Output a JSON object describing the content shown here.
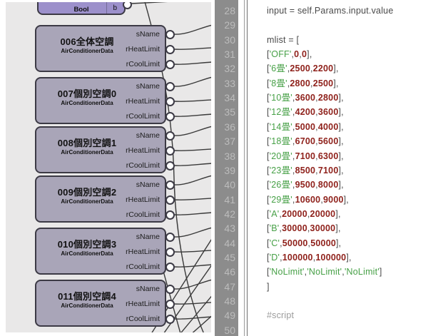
{
  "colors": {
    "canvas_bg": "#e9e8e8",
    "node_fill": "#a9a5b8",
    "node_border": "#3c3a45",
    "bool_node_fill": "#9c90cb",
    "wire": "#3a3a3a",
    "gutter_bg": "#8c8c8c",
    "gutter_text": "#bcbcbc",
    "code_text": "#4a4a4a",
    "string_green": "#46a046",
    "number_red": "#8f221c",
    "comment_gray": "#9b9b9b"
  },
  "canvas": {
    "bool_node": {
      "label": "Bool",
      "port_label": "b"
    },
    "nodes": [
      {
        "title": "006全体空調",
        "subtitle": "AirConditionerData",
        "ports": [
          "sName",
          "rHeatLimit",
          "rCoolLimit"
        ]
      },
      {
        "title": "007個別空調0",
        "subtitle": "AirConditionerData",
        "ports": [
          "sName",
          "rHeatLimit",
          "rCoolLimit"
        ]
      },
      {
        "title": "008個別空調1",
        "subtitle": "AirConditionerData",
        "ports": [
          "sName",
          "rHeatLimit",
          "rCoolLimit"
        ]
      },
      {
        "title": "009個別空調2",
        "subtitle": "AirConditionerData",
        "ports": [
          "sName",
          "rHeatLimit",
          "rCoolLimit"
        ]
      },
      {
        "title": "010個別空調3",
        "subtitle": "AirConditionerData",
        "ports": [
          "sName",
          "rHeatLimit",
          "rCoolLimit"
        ]
      },
      {
        "title": "011個別空調4",
        "subtitle": "AirConditionerData",
        "ports": [
          "sName",
          "rHeatLimit",
          "rCoolLimit"
        ]
      }
    ]
  },
  "editor": {
    "first_line_number": 28,
    "last_line_number": 50,
    "lines": [
      {
        "n": 28,
        "tokens": [
          {
            "t": "c",
            "v": "input = self.Params.input.value"
          }
        ]
      },
      {
        "n": 29,
        "tokens": []
      },
      {
        "n": 30,
        "tokens": [
          {
            "t": "c",
            "v": "mlist = ["
          }
        ]
      },
      {
        "n": 31,
        "tokens": [
          {
            "t": "c",
            "v": "["
          },
          {
            "t": "s",
            "v": "'OFF'"
          },
          {
            "t": "c",
            "v": ","
          },
          {
            "t": "n",
            "v": "0"
          },
          {
            "t": "c",
            "v": ","
          },
          {
            "t": "n",
            "v": "0"
          },
          {
            "t": "c",
            "v": "],"
          }
        ]
      },
      {
        "n": 32,
        "tokens": [
          {
            "t": "c",
            "v": "["
          },
          {
            "t": "s",
            "v": "'6畳'"
          },
          {
            "t": "c",
            "v": ","
          },
          {
            "t": "n",
            "v": "2500"
          },
          {
            "t": "c",
            "v": ","
          },
          {
            "t": "n",
            "v": "2200"
          },
          {
            "t": "c",
            "v": "],"
          }
        ]
      },
      {
        "n": 33,
        "tokens": [
          {
            "t": "c",
            "v": "["
          },
          {
            "t": "s",
            "v": "'8畳'"
          },
          {
            "t": "c",
            "v": ","
          },
          {
            "t": "n",
            "v": "2800"
          },
          {
            "t": "c",
            "v": ","
          },
          {
            "t": "n",
            "v": "2500"
          },
          {
            "t": "c",
            "v": "],"
          }
        ]
      },
      {
        "n": 34,
        "tokens": [
          {
            "t": "c",
            "v": "["
          },
          {
            "t": "s",
            "v": "'10畳'"
          },
          {
            "t": "c",
            "v": ","
          },
          {
            "t": "n",
            "v": "3600"
          },
          {
            "t": "c",
            "v": ","
          },
          {
            "t": "n",
            "v": "2800"
          },
          {
            "t": "c",
            "v": "],"
          }
        ]
      },
      {
        "n": 35,
        "tokens": [
          {
            "t": "c",
            "v": "["
          },
          {
            "t": "s",
            "v": "'12畳'"
          },
          {
            "t": "c",
            "v": ","
          },
          {
            "t": "n",
            "v": "4200"
          },
          {
            "t": "c",
            "v": ","
          },
          {
            "t": "n",
            "v": "3600"
          },
          {
            "t": "c",
            "v": "],"
          }
        ]
      },
      {
        "n": 36,
        "tokens": [
          {
            "t": "c",
            "v": "["
          },
          {
            "t": "s",
            "v": "'14畳'"
          },
          {
            "t": "c",
            "v": ","
          },
          {
            "t": "n",
            "v": "5000"
          },
          {
            "t": "c",
            "v": ","
          },
          {
            "t": "n",
            "v": "4000"
          },
          {
            "t": "c",
            "v": "],"
          }
        ]
      },
      {
        "n": 37,
        "tokens": [
          {
            "t": "c",
            "v": "["
          },
          {
            "t": "s",
            "v": "'18畳'"
          },
          {
            "t": "c",
            "v": ","
          },
          {
            "t": "n",
            "v": "6700"
          },
          {
            "t": "c",
            "v": ","
          },
          {
            "t": "n",
            "v": "5600"
          },
          {
            "t": "c",
            "v": "],"
          }
        ]
      },
      {
        "n": 38,
        "tokens": [
          {
            "t": "c",
            "v": "["
          },
          {
            "t": "s",
            "v": "'20畳'"
          },
          {
            "t": "c",
            "v": ","
          },
          {
            "t": "n",
            "v": "7100"
          },
          {
            "t": "c",
            "v": ","
          },
          {
            "t": "n",
            "v": "6300"
          },
          {
            "t": "c",
            "v": "],"
          }
        ]
      },
      {
        "n": 39,
        "tokens": [
          {
            "t": "c",
            "v": "["
          },
          {
            "t": "s",
            "v": "'23畳'"
          },
          {
            "t": "c",
            "v": ","
          },
          {
            "t": "n",
            "v": "8500"
          },
          {
            "t": "c",
            "v": ","
          },
          {
            "t": "n",
            "v": "7100"
          },
          {
            "t": "c",
            "v": "],"
          }
        ]
      },
      {
        "n": 40,
        "tokens": [
          {
            "t": "c",
            "v": "["
          },
          {
            "t": "s",
            "v": "'26畳'"
          },
          {
            "t": "c",
            "v": ","
          },
          {
            "t": "n",
            "v": "9500"
          },
          {
            "t": "c",
            "v": ","
          },
          {
            "t": "n",
            "v": "8000"
          },
          {
            "t": "c",
            "v": "],"
          }
        ]
      },
      {
        "n": 41,
        "tokens": [
          {
            "t": "c",
            "v": "["
          },
          {
            "t": "s",
            "v": "'29畳'"
          },
          {
            "t": "c",
            "v": ","
          },
          {
            "t": "n",
            "v": "10600"
          },
          {
            "t": "c",
            "v": ","
          },
          {
            "t": "n",
            "v": "9000"
          },
          {
            "t": "c",
            "v": "],"
          }
        ]
      },
      {
        "n": 42,
        "tokens": [
          {
            "t": "c",
            "v": "["
          },
          {
            "t": "s",
            "v": "'A'"
          },
          {
            "t": "c",
            "v": ","
          },
          {
            "t": "n",
            "v": "20000"
          },
          {
            "t": "c",
            "v": ","
          },
          {
            "t": "n",
            "v": "20000"
          },
          {
            "t": "c",
            "v": "],"
          }
        ]
      },
      {
        "n": 43,
        "tokens": [
          {
            "t": "c",
            "v": "["
          },
          {
            "t": "s",
            "v": "'B'"
          },
          {
            "t": "c",
            "v": ","
          },
          {
            "t": "n",
            "v": "30000"
          },
          {
            "t": "c",
            "v": ","
          },
          {
            "t": "n",
            "v": "30000"
          },
          {
            "t": "c",
            "v": "],"
          }
        ]
      },
      {
        "n": 44,
        "tokens": [
          {
            "t": "c",
            "v": "["
          },
          {
            "t": "s",
            "v": "'C'"
          },
          {
            "t": "c",
            "v": ","
          },
          {
            "t": "n",
            "v": "50000"
          },
          {
            "t": "c",
            "v": ","
          },
          {
            "t": "n",
            "v": "50000"
          },
          {
            "t": "c",
            "v": "],"
          }
        ]
      },
      {
        "n": 45,
        "tokens": [
          {
            "t": "c",
            "v": "["
          },
          {
            "t": "s",
            "v": "'D'"
          },
          {
            "t": "c",
            "v": ","
          },
          {
            "t": "n",
            "v": "100000"
          },
          {
            "t": "c",
            "v": ","
          },
          {
            "t": "n",
            "v": "100000"
          },
          {
            "t": "c",
            "v": "],"
          }
        ]
      },
      {
        "n": 46,
        "tokens": [
          {
            "t": "c",
            "v": "["
          },
          {
            "t": "s",
            "v": "'NoLimit'"
          },
          {
            "t": "c",
            "v": ","
          },
          {
            "t": "s",
            "v": "'NoLimit'"
          },
          {
            "t": "c",
            "v": ","
          },
          {
            "t": "s",
            "v": "'NoLimit'"
          },
          {
            "t": "c",
            "v": "]"
          }
        ]
      },
      {
        "n": 47,
        "tokens": [
          {
            "t": "c",
            "v": "]"
          }
        ]
      },
      {
        "n": 48,
        "tokens": []
      },
      {
        "n": 49,
        "tokens": [
          {
            "t": "m",
            "v": "#script"
          }
        ]
      },
      {
        "n": 50,
        "tokens": []
      }
    ]
  }
}
